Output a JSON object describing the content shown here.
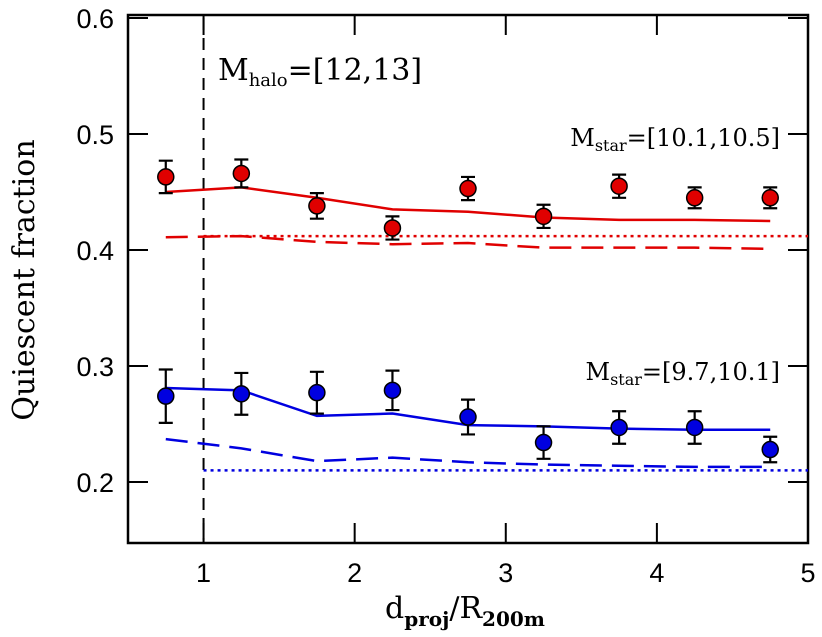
{
  "chart_data": {
    "type": "scatter",
    "x_label": {
      "main": "d",
      "sub": "proj",
      "mid": "/R",
      "sub2": "200m"
    },
    "y_label": "Quiescent fraction",
    "annotations": [
      {
        "main": "M",
        "sub": "halo",
        "after": "=[12,13]"
      },
      {
        "main": "M",
        "sub": "star",
        "after": "=[10.1,10.5]"
      },
      {
        "main": "M",
        "sub": "star",
        "after": "=[9.7,10.1]"
      }
    ],
    "xlim": [
      0.5,
      5
    ],
    "ylim": [
      0.15,
      0.6
    ],
    "xticks": [
      1,
      2,
      3,
      4,
      5
    ],
    "yticks": [
      0.2,
      0.3,
      0.4,
      0.5,
      0.6
    ],
    "x": [
      0.75,
      1.25,
      1.75,
      2.25,
      2.75,
      3.25,
      3.75,
      4.25,
      4.75
    ],
    "series": [
      {
        "color": "#e00000",
        "values": [
          0.463,
          0.466,
          0.438,
          0.419,
          0.453,
          0.429,
          0.455,
          0.445,
          0.445
        ],
        "errors": [
          0.014,
          0.012,
          0.011,
          0.01,
          0.01,
          0.01,
          0.01,
          0.009,
          0.009
        ]
      },
      {
        "color": "#0000e0",
        "values": [
          0.274,
          0.276,
          0.277,
          0.279,
          0.256,
          0.234,
          0.247,
          0.247,
          0.228
        ],
        "errors": [
          0.023,
          0.018,
          0.018,
          0.017,
          0.015,
          0.014,
          0.014,
          0.014,
          0.011
        ]
      }
    ],
    "lines": [
      {
        "color": "#e00000",
        "style": "solid",
        "values": [
          0.45,
          0.454,
          0.445,
          0.435,
          0.433,
          0.428,
          0.426,
          0.426,
          0.425
        ]
      },
      {
        "color": "#e00000",
        "style": "dashed",
        "values": [
          0.411,
          0.412,
          0.407,
          0.405,
          0.406,
          0.402,
          0.402,
          0.402,
          0.401
        ]
      },
      {
        "color": "#0000e0",
        "style": "solid",
        "values": [
          0.281,
          0.279,
          0.257,
          0.259,
          0.249,
          0.248,
          0.246,
          0.245,
          0.245
        ]
      },
      {
        "color": "#0000e0",
        "style": "dashed",
        "values": [
          0.237,
          0.229,
          0.218,
          0.221,
          0.217,
          0.215,
          0.214,
          0.213,
          0.213
        ]
      }
    ],
    "hlines": [
      {
        "color": "#e00000",
        "style": "dotted",
        "value": 0.412,
        "xrange": [
          1,
          5
        ]
      },
      {
        "color": "#0000e0",
        "style": "dotted",
        "value": 0.21,
        "xrange": [
          1,
          5
        ]
      }
    ],
    "vline": 1
  }
}
